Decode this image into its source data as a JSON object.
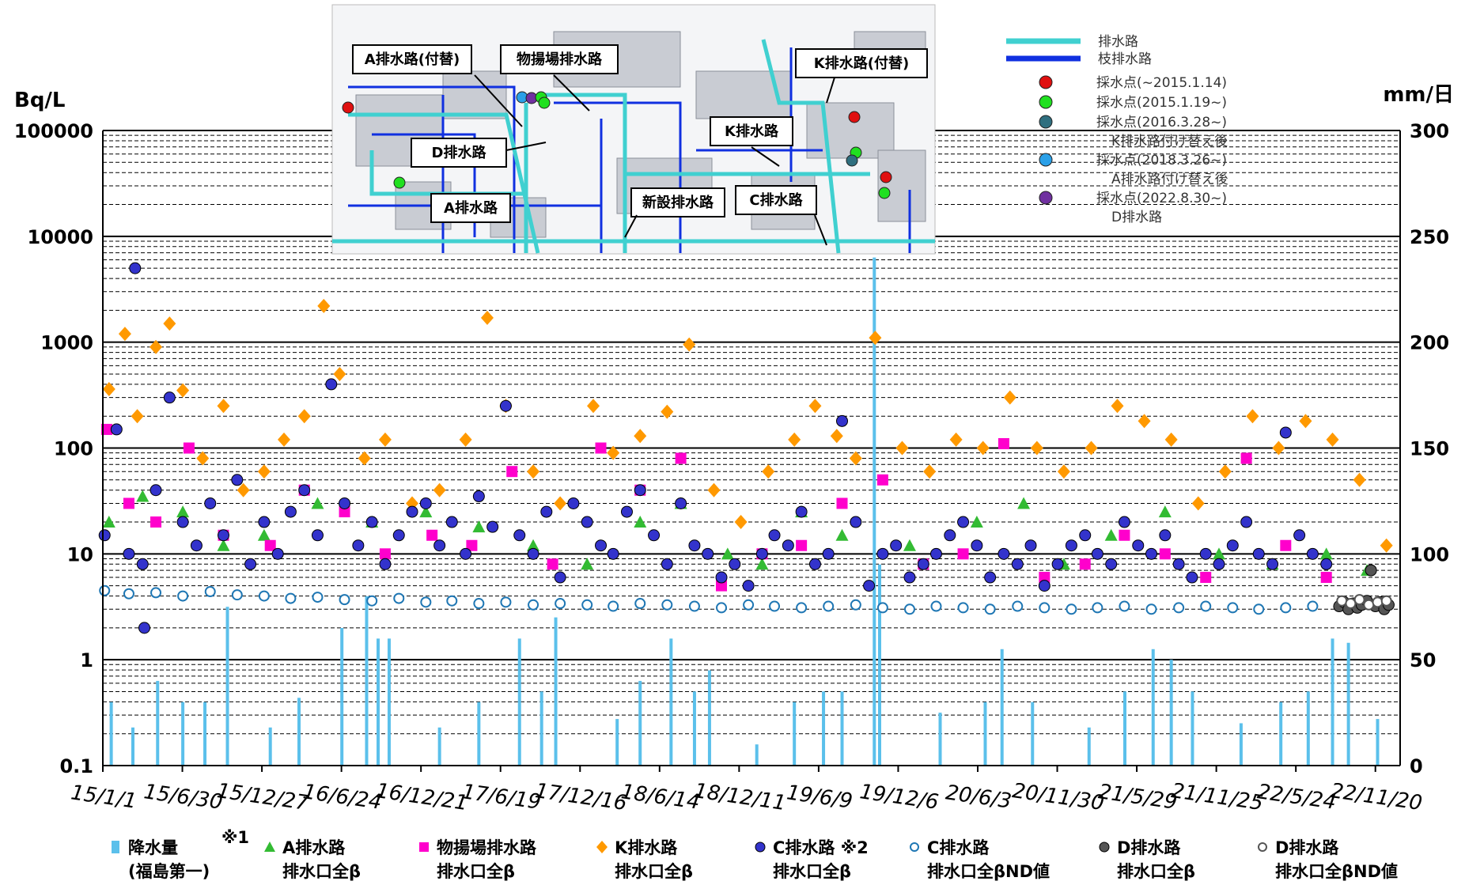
{
  "chart_data": {
    "type": "scatter",
    "y_left": {
      "unit": "Bq/L",
      "scale": "log",
      "range": [
        0.1,
        100000
      ],
      "ticks": [
        "100000",
        "10000",
        "1000",
        "100",
        "10",
        "1",
        "0.1"
      ]
    },
    "y_right": {
      "unit": "mm/日",
      "scale": "linear",
      "range": [
        0,
        300
      ],
      "ticks": [
        "300",
        "250",
        "200",
        "150",
        "100",
        "50",
        "0"
      ]
    },
    "x_axis": {
      "range": [
        "2015-01-01",
        "2023-01-15"
      ],
      "tick_labels": [
        "15/1/1",
        "15/6/30",
        "15/12/27",
        "16/6/24",
        "16/12/21",
        "17/6/19",
        "17/12/16",
        "18/6/14",
        "18/12/11",
        "19/6/9",
        "19/12/6",
        "20/6/3",
        "20/11/30",
        "21/5/29",
        "21/11/25",
        "22/5/24",
        "22/11/20"
      ],
      "tick_dates": [
        "2015-01-01",
        "2015-06-30",
        "2015-12-27",
        "2016-06-24",
        "2016-12-21",
        "2017-06-19",
        "2017-12-16",
        "2018-06-14",
        "2018-12-11",
        "2019-06-09",
        "2019-12-06",
        "2020-06-03",
        "2020-11-30",
        "2021-05-29",
        "2021-11-25",
        "2022-05-24",
        "2022-11-20"
      ]
    },
    "grid": true,
    "series": [
      {
        "key": "rain",
        "name_line1": "降水量",
        "name_line2": "(福島第一)",
        "note": "※1",
        "color": "#5bc0eb",
        "marker": "bar",
        "axis": "right",
        "x": [
          "2015-01-20",
          "2015-03-10",
          "2015-05-05",
          "2015-07-01",
          "2015-08-20",
          "2015-10-10",
          "2016-01-15",
          "2016-03-20",
          "2016-06-25",
          "2016-08-20",
          "2016-09-15",
          "2016-10-10",
          "2017-02-01",
          "2017-05-01",
          "2017-08-01",
          "2017-09-20",
          "2017-10-22",
          "2018-03-10",
          "2018-05-01",
          "2018-07-10",
          "2018-09-01",
          "2018-10-05",
          "2019-01-20",
          "2019-04-15",
          "2019-06-20",
          "2019-08-01",
          "2019-10-13",
          "2019-10-25",
          "2020-03-10",
          "2020-06-20",
          "2020-07-28",
          "2020-10-05",
          "2021-02-10",
          "2021-05-02",
          "2021-07-05",
          "2021-08-15",
          "2021-10-02",
          "2022-01-20",
          "2022-04-20",
          "2022-06-21",
          "2022-08-15",
          "2022-09-20",
          "2022-11-25"
        ],
        "y": [
          30,
          18,
          40,
          30,
          30,
          75,
          18,
          32,
          65,
          80,
          60,
          60,
          18,
          30,
          60,
          35,
          70,
          22,
          40,
          60,
          35,
          45,
          10,
          30,
          35,
          35,
          240,
          95,
          25,
          30,
          55,
          30,
          18,
          35,
          55,
          50,
          35,
          20,
          30,
          35,
          60,
          58,
          22
        ]
      },
      {
        "key": "a",
        "name_line1": "A排水路",
        "name_line2": "排水口全β",
        "color": "#33bb33",
        "marker": "triangle",
        "axis": "left",
        "x": [
          "2015-01-15",
          "2015-04-01",
          "2015-07-01",
          "2015-10-01",
          "2016-01-01",
          "2016-05-01",
          "2016-09-01",
          "2017-01-01",
          "2017-05-01",
          "2017-09-01",
          "2018-01-01",
          "2018-05-01",
          "2018-08-01",
          "2018-11-15",
          "2019-02-01",
          "2019-05-01",
          "2019-08-01",
          "2020-01-01",
          "2020-06-01",
          "2020-09-15",
          "2020-12-15",
          "2021-04-01",
          "2021-08-01",
          "2021-12-01",
          "2022-04-01",
          "2022-08-01",
          "2022-11-01"
        ],
        "y": [
          20,
          35,
          25,
          12,
          15,
          30,
          20,
          25,
          18,
          12,
          8,
          20,
          30,
          10,
          8,
          25,
          15,
          12,
          20,
          30,
          8,
          15,
          25,
          10,
          8,
          10,
          7
        ]
      },
      {
        "key": "m",
        "name_line1": "物揚場排水路",
        "name_line2": "排水口全β",
        "color": "#ff00cc",
        "marker": "square",
        "axis": "left",
        "x": [
          "2015-01-10",
          "2015-03-01",
          "2015-05-01",
          "2015-07-15",
          "2015-10-01",
          "2016-01-15",
          "2016-04-01",
          "2016-07-01",
          "2016-10-01",
          "2017-01-15",
          "2017-04-15",
          "2017-07-15",
          "2017-10-15",
          "2018-02-01",
          "2018-05-01",
          "2018-08-01",
          "2018-11-01",
          "2019-02-01",
          "2019-05-01",
          "2019-08-01",
          "2019-11-01",
          "2020-02-01",
          "2020-05-01",
          "2020-08-01",
          "2020-11-01",
          "2021-02-01",
          "2021-05-01",
          "2021-08-01",
          "2021-11-01",
          "2022-02-01",
          "2022-05-01",
          "2022-08-01"
        ],
        "y": [
          150,
          30,
          20,
          100,
          15,
          12,
          40,
          25,
          10,
          15,
          12,
          60,
          8,
          100,
          40,
          80,
          5,
          10,
          12,
          30,
          50,
          8,
          10,
          110,
          6,
          8,
          15,
          10,
          6,
          80,
          12,
          6
        ]
      },
      {
        "key": "k",
        "name_line1": "K排水路",
        "name_line2": "排水口全β",
        "color": "#ff9900",
        "marker": "diamond",
        "axis": "left",
        "x": [
          "2015-01-15",
          "2015-02-20",
          "2015-03-20",
          "2015-05-01",
          "2015-06-01",
          "2015-07-01",
          "2015-08-15",
          "2015-10-01",
          "2015-11-15",
          "2016-01-01",
          "2016-02-15",
          "2016-04-01",
          "2016-05-15",
          "2016-06-20",
          "2016-08-15",
          "2016-10-01",
          "2016-12-01",
          "2017-02-01",
          "2017-04-01",
          "2017-05-20",
          "2017-07-01",
          "2017-09-01",
          "2017-11-01",
          "2018-01-15",
          "2018-03-01",
          "2018-05-01",
          "2018-07-01",
          "2018-08-20",
          "2018-10-15",
          "2018-12-15",
          "2019-02-15",
          "2019-04-15",
          "2019-06-01",
          "2019-07-20",
          "2019-09-01",
          "2019-10-15",
          "2019-12-15",
          "2020-02-15",
          "2020-04-15",
          "2020-06-15",
          "2020-08-15",
          "2020-10-15",
          "2020-12-15",
          "2021-02-15",
          "2021-04-15",
          "2021-06-15",
          "2021-08-15",
          "2021-10-15",
          "2021-12-15",
          "2022-02-15",
          "2022-04-15",
          "2022-06-15",
          "2022-08-15",
          "2022-10-15",
          "2022-12-15"
        ],
        "y": [
          360,
          1200,
          200,
          900,
          1500,
          350,
          80,
          250,
          40,
          60,
          120,
          200,
          2200,
          500,
          80,
          120,
          30,
          40,
          120,
          1700,
          250,
          60,
          30,
          250,
          90,
          130,
          220,
          950,
          40,
          20,
          60,
          120,
          250,
          130,
          80,
          1100,
          100,
          60,
          120,
          100,
          300,
          100,
          60,
          100,
          250,
          180,
          120,
          30,
          60,
          200,
          100,
          180,
          120,
          50,
          12
        ]
      },
      {
        "key": "c",
        "name_line1": "C排水路 ※2",
        "name_line2": "排水口全β",
        "color": "#3333cc",
        "marker": "circle",
        "axis": "left",
        "x": [
          "2015-01-05",
          "2015-02-01",
          "2015-03-01",
          "2015-04-01",
          "2015-05-01",
          "2015-06-01",
          "2015-07-01",
          "2015-08-01",
          "2015-09-01",
          "2015-10-01",
          "2015-11-01",
          "2015-12-01",
          "2016-01-01",
          "2016-02-01",
          "2016-03-01",
          "2016-04-01",
          "2016-05-01",
          "2016-06-01",
          "2016-07-01",
          "2016-08-01",
          "2016-09-01",
          "2016-10-01",
          "2016-11-01",
          "2016-12-01",
          "2017-01-01",
          "2017-02-01",
          "2017-03-01",
          "2017-04-01",
          "2017-05-01",
          "2017-06-01",
          "2017-07-01",
          "2017-08-01",
          "2017-09-01",
          "2017-10-01",
          "2017-11-01",
          "2017-12-01",
          "2018-01-01",
          "2018-02-01",
          "2018-03-01",
          "2018-04-01",
          "2018-05-01",
          "2018-06-01",
          "2018-07-01",
          "2018-08-01",
          "2018-09-01",
          "2018-10-01",
          "2018-11-01",
          "2018-12-01",
          "2019-01-01",
          "2019-02-01",
          "2019-03-01",
          "2019-04-01",
          "2019-05-01",
          "2019-06-01",
          "2019-07-01",
          "2019-08-01",
          "2019-09-01",
          "2019-10-01",
          "2019-11-01",
          "2019-12-01",
          "2020-01-01",
          "2020-02-01",
          "2020-03-01",
          "2020-04-01",
          "2020-05-01",
          "2020-06-01",
          "2020-07-01",
          "2020-08-01",
          "2020-09-01",
          "2020-10-01",
          "2020-11-01",
          "2020-12-01",
          "2021-01-01",
          "2021-02-01",
          "2021-03-01",
          "2021-04-01",
          "2021-05-01",
          "2021-06-01",
          "2021-07-01",
          "2021-08-01",
          "2021-09-01",
          "2021-10-01",
          "2021-11-01",
          "2021-12-01",
          "2022-01-01",
          "2022-02-01",
          "2022-03-01",
          "2022-04-01",
          "2022-05-01",
          "2022-06-01",
          "2022-07-01",
          "2022-08-01",
          "2015-03-15",
          "2015-04-05"
        ],
        "y": [
          15,
          150,
          10,
          8,
          40,
          300,
          20,
          12,
          30,
          15,
          50,
          8,
          20,
          10,
          25,
          40,
          15,
          400,
          30,
          12,
          20,
          8,
          15,
          25,
          30,
          12,
          20,
          10,
          35,
          18,
          250,
          15,
          10,
          25,
          6,
          30,
          20,
          12,
          10,
          25,
          40,
          15,
          8,
          30,
          12,
          10,
          6,
          8,
          5,
          10,
          15,
          12,
          25,
          8,
          10,
          180,
          20,
          5,
          10,
          12,
          6,
          8,
          10,
          15,
          20,
          12,
          6,
          10,
          8,
          12,
          5,
          8,
          12,
          15,
          10,
          8,
          20,
          12,
          10,
          15,
          8,
          6,
          10,
          8,
          12,
          20,
          10,
          8,
          140,
          15,
          10,
          8,
          5000,
          2
        ]
      },
      {
        "key": "cnd",
        "name_line1": "C排水路",
        "name_line2": "排水口全βND値",
        "color": "#1f77b4",
        "marker": "open-circle",
        "axis": "left",
        "x": [
          "2015-01-05",
          "2015-03-01",
          "2015-05-01",
          "2015-07-01",
          "2015-09-01",
          "2015-11-01",
          "2016-01-01",
          "2016-03-01",
          "2016-05-01",
          "2016-07-01",
          "2016-09-01",
          "2016-11-01",
          "2017-01-01",
          "2017-03-01",
          "2017-05-01",
          "2017-07-01",
          "2017-09-01",
          "2017-11-01",
          "2018-01-01",
          "2018-03-01",
          "2018-05-01",
          "2018-07-01",
          "2018-09-01",
          "2018-11-01",
          "2019-01-01",
          "2019-03-01",
          "2019-05-01",
          "2019-07-01",
          "2019-09-01",
          "2019-11-01",
          "2020-01-01",
          "2020-03-01",
          "2020-05-01",
          "2020-07-01",
          "2020-09-01",
          "2020-11-01",
          "2021-01-01",
          "2021-03-01",
          "2021-05-01",
          "2021-07-01",
          "2021-09-01",
          "2021-11-01",
          "2022-01-01",
          "2022-03-01",
          "2022-05-01",
          "2022-07-01"
        ],
        "y": [
          4.5,
          4.2,
          4.3,
          4.0,
          4.4,
          4.1,
          4.0,
          3.8,
          3.9,
          3.7,
          3.6,
          3.8,
          3.5,
          3.6,
          3.4,
          3.5,
          3.3,
          3.4,
          3.3,
          3.2,
          3.4,
          3.3,
          3.2,
          3.1,
          3.3,
          3.2,
          3.1,
          3.2,
          3.3,
          3.1,
          3.0,
          3.2,
          3.1,
          3.0,
          3.2,
          3.1,
          3.0,
          3.1,
          3.2,
          3.0,
          3.1,
          3.2,
          3.1,
          3.0,
          3.1,
          3.2
        ]
      },
      {
        "key": "d",
        "name_line1": "D排水路",
        "name_line2": "排水口全β",
        "color": "#555555",
        "marker": "circle",
        "axis": "left",
        "x": [
          "2022-08-30",
          "2022-09-10",
          "2022-09-20",
          "2022-10-01",
          "2022-10-10",
          "2022-10-20",
          "2022-11-01",
          "2022-11-10",
          "2022-11-20",
          "2022-12-01",
          "2022-12-10",
          "2022-12-20"
        ],
        "y": [
          3.2,
          3.5,
          3.0,
          3.4,
          3.1,
          3.3,
          3.6,
          7,
          3.2,
          3.5,
          3.0,
          3.3
        ]
      },
      {
        "key": "dnd",
        "name_line1": "D排水路",
        "name_line2": "排水口全βND値",
        "color": "#555555",
        "marker": "open-circle",
        "axis": "left",
        "x": [
          "2022-09-05",
          "2022-09-25",
          "2022-10-15",
          "2022-11-05",
          "2022-11-25",
          "2022-12-15"
        ],
        "y": [
          3.6,
          3.4,
          3.7,
          3.3,
          3.5,
          3.6
        ]
      }
    ]
  },
  "map_inset": {
    "labels": {
      "a_route_replaced": "A排水路(付替)",
      "buoy_route": "物揚場排水路",
      "k_route_replaced": "K排水路(付替)",
      "d_route": "D排水路",
      "k_route": "K排水路",
      "a_route": "A排水路",
      "new_route": "新設排水路",
      "c_route": "C排水路"
    },
    "legend": [
      {
        "type": "line",
        "color": "#40d0d0",
        "label": "排水路"
      },
      {
        "type": "line",
        "color": "#1030e0",
        "label": "枝排水路"
      },
      {
        "type": "dot",
        "color": "#e01010",
        "label": "採水点(~2015.1.14)",
        "label2": ""
      },
      {
        "type": "dot",
        "color": "#20e020",
        "label": "採水点(2015.1.19~)",
        "label2": ""
      },
      {
        "type": "dot",
        "color": "#2f6f7f",
        "label": "採水点(2016.3.28~)",
        "label2": "K排水路付け替え後"
      },
      {
        "type": "dot",
        "color": "#2aa0e8",
        "label": "採水点(2018.3.26~)",
        "label2": "A排水路付け替え後"
      },
      {
        "type": "dot",
        "color": "#7030a0",
        "label": "採水点(2022.8.30~)",
        "label2": "D排水路"
      }
    ]
  }
}
